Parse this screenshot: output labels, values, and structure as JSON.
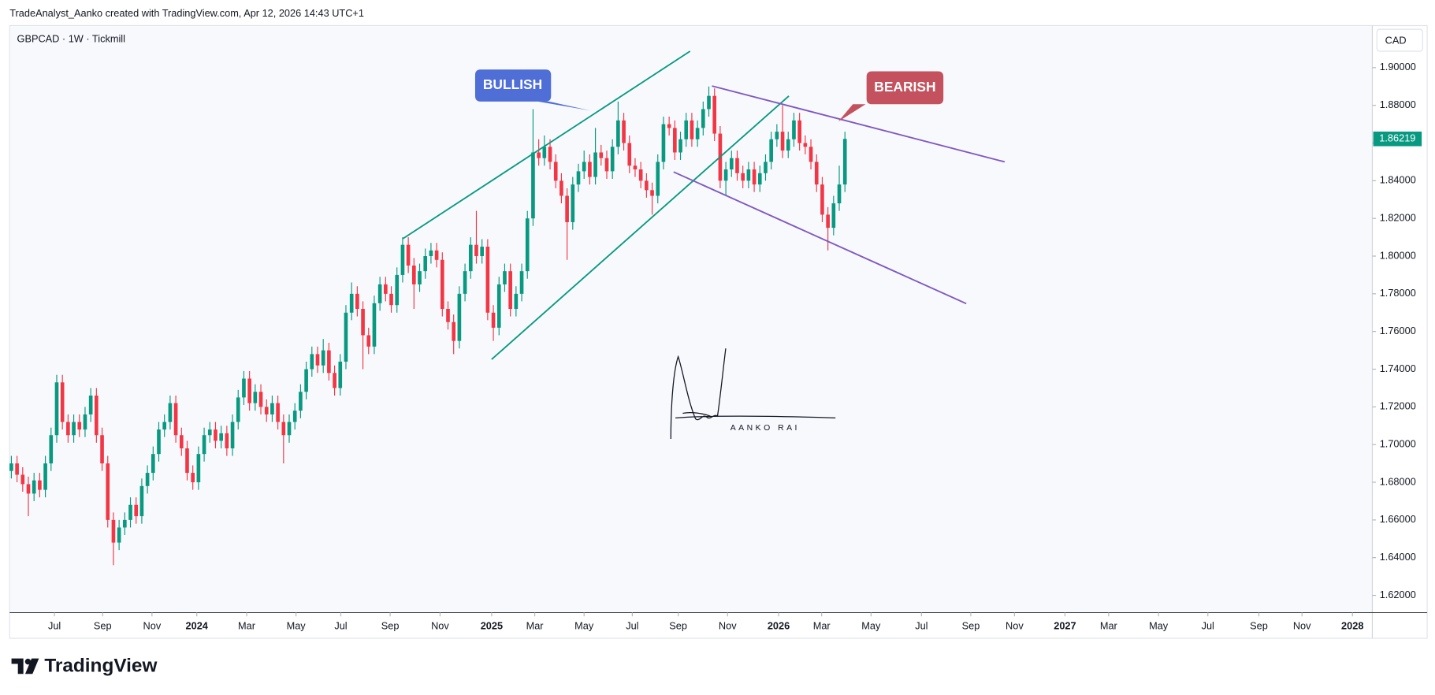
{
  "header": {
    "credit": "TradeAnalyst_Aanko created with TradingView.com, Apr 12, 2026 14:43 UTC+1"
  },
  "footer": {
    "logo": "TradingView"
  },
  "chart_data": {
    "type": "candlestick",
    "title": "GBPCAD · 1W · Tickmill",
    "currency": "CAD",
    "up_color": "#089981",
    "down_color": "#f23645",
    "annotations": [
      "BULLISH",
      "BEARISH"
    ],
    "signature": "AANKO RAI",
    "xlim": [
      -0.3,
      240
    ],
    "xticks": [
      {
        "value": 7.6,
        "label": "Jul"
      },
      {
        "value": 16.1,
        "label": "Sep"
      },
      {
        "value": 24.8,
        "label": "Nov"
      },
      {
        "value": 32.7,
        "label": "2024"
      },
      {
        "value": 41.5,
        "label": "Mar"
      },
      {
        "value": 50.2,
        "label": "May"
      },
      {
        "value": 58.1,
        "label": "Jul"
      },
      {
        "value": 66.8,
        "label": "Sep"
      },
      {
        "value": 75.6,
        "label": "Nov"
      },
      {
        "value": 84.7,
        "label": "2025"
      },
      {
        "value": 92.3,
        "label": "Mar"
      },
      {
        "value": 101,
        "label": "May"
      },
      {
        "value": 109.5,
        "label": "Jul"
      },
      {
        "value": 117.6,
        "label": "Sep"
      },
      {
        "value": 126.3,
        "label": "Nov"
      },
      {
        "value": 135.3,
        "label": "2026"
      },
      {
        "value": 142.9,
        "label": "Mar"
      },
      {
        "value": 151.6,
        "label": "May"
      },
      {
        "value": 160.5,
        "label": "Jul"
      },
      {
        "value": 169.2,
        "label": "Sep"
      },
      {
        "value": 176.9,
        "label": "Nov"
      },
      {
        "value": 185.8,
        "label": "2027"
      },
      {
        "value": 193.5,
        "label": "Mar"
      },
      {
        "value": 202.3,
        "label": "May"
      },
      {
        "value": 211,
        "label": "Jul"
      },
      {
        "value": 220,
        "label": "Sep"
      },
      {
        "value": 227.6,
        "label": "Nov"
      },
      {
        "value": 236.5,
        "label": "2028"
      }
    ],
    "ylim": [
      1.6108,
      1.9223
    ],
    "yticks": [
      {
        "value": 1.62,
        "label": "1.62000"
      },
      {
        "value": 1.64,
        "label": "1.64000"
      },
      {
        "value": 1.66,
        "label": "1.66000"
      },
      {
        "value": 1.68,
        "label": "1.68000"
      },
      {
        "value": 1.7,
        "label": "1.70000"
      },
      {
        "value": 1.72,
        "label": "1.72000"
      },
      {
        "value": 1.74,
        "label": "1.74000"
      },
      {
        "value": 1.76,
        "label": "1.76000"
      },
      {
        "value": 1.78,
        "label": "1.78000"
      },
      {
        "value": 1.8,
        "label": "1.80000"
      },
      {
        "value": 1.82,
        "label": "1.82000"
      },
      {
        "value": 1.84,
        "label": "1.84000"
      },
      {
        "value": 1.86,
        "label": "1.86000"
      },
      {
        "value": 1.88,
        "label": "1.88000"
      },
      {
        "value": 1.9,
        "label": "1.90000"
      }
    ],
    "candles": [
      [
        1.686,
        1.694,
        1.682,
        1.69
      ],
      [
        1.69,
        1.694,
        1.68,
        1.684
      ],
      [
        1.684,
        1.688,
        1.675,
        1.679
      ],
      [
        1.679,
        1.683,
        1.662,
        1.674
      ],
      [
        1.674,
        1.685,
        1.67,
        1.681
      ],
      [
        1.681,
        1.685,
        1.672,
        1.676
      ],
      [
        1.676,
        1.694,
        1.672,
        1.69
      ],
      [
        1.69,
        1.709,
        1.686,
        1.705
      ],
      [
        1.705,
        1.737,
        1.701,
        1.733
      ],
      [
        1.733,
        1.737,
        1.708,
        1.712
      ],
      [
        1.712,
        1.716,
        1.701,
        1.705
      ],
      [
        1.705,
        1.716,
        1.701,
        1.712
      ],
      [
        1.712,
        1.716,
        1.704,
        1.708
      ],
      [
        1.708,
        1.72,
        1.704,
        1.716
      ],
      [
        1.716,
        1.73,
        1.712,
        1.726
      ],
      [
        1.726,
        1.73,
        1.701,
        1.705
      ],
      [
        1.705,
        1.709,
        1.686,
        1.69
      ],
      [
        1.69,
        1.694,
        1.656,
        1.66
      ],
      [
        1.66,
        1.664,
        1.636,
        1.648
      ],
      [
        1.648,
        1.66,
        1.644,
        1.656
      ],
      [
        1.656,
        1.664,
        1.652,
        1.66
      ],
      [
        1.66,
        1.672,
        1.656,
        1.668
      ],
      [
        1.668,
        1.672,
        1.658,
        1.662
      ],
      [
        1.662,
        1.682,
        1.658,
        1.678
      ],
      [
        1.678,
        1.689,
        1.674,
        1.685
      ],
      [
        1.685,
        1.699,
        1.681,
        1.695
      ],
      [
        1.695,
        1.712,
        1.691,
        1.708
      ],
      [
        1.708,
        1.716,
        1.704,
        1.712
      ],
      [
        1.712,
        1.726,
        1.708,
        1.722
      ],
      [
        1.722,
        1.726,
        1.701,
        1.705
      ],
      [
        1.705,
        1.709,
        1.694,
        1.698
      ],
      [
        1.698,
        1.702,
        1.681,
        1.685
      ],
      [
        1.685,
        1.689,
        1.676,
        1.68
      ],
      [
        1.68,
        1.699,
        1.676,
        1.695
      ],
      [
        1.695,
        1.709,
        1.691,
        1.705
      ],
      [
        1.705,
        1.712,
        1.701,
        1.708
      ],
      [
        1.708,
        1.712,
        1.698,
        1.702
      ],
      [
        1.702,
        1.71,
        1.698,
        1.706
      ],
      [
        1.706,
        1.71,
        1.694,
        1.698
      ],
      [
        1.698,
        1.716,
        1.694,
        1.712
      ],
      [
        1.712,
        1.729,
        1.708,
        1.725
      ],
      [
        1.725,
        1.739,
        1.721,
        1.735
      ],
      [
        1.735,
        1.739,
        1.718,
        1.722
      ],
      [
        1.722,
        1.732,
        1.718,
        1.728
      ],
      [
        1.728,
        1.732,
        1.716,
        1.72
      ],
      [
        1.72,
        1.724,
        1.712,
        1.716
      ],
      [
        1.716,
        1.726,
        1.712,
        1.722
      ],
      [
        1.722,
        1.726,
        1.708,
        1.712
      ],
      [
        1.712,
        1.716,
        1.69,
        1.705
      ],
      [
        1.705,
        1.716,
        1.701,
        1.712
      ],
      [
        1.712,
        1.722,
        1.708,
        1.718
      ],
      [
        1.718,
        1.732,
        1.714,
        1.728
      ],
      [
        1.728,
        1.744,
        1.724,
        1.74
      ],
      [
        1.74,
        1.752,
        1.736,
        1.748
      ],
      [
        1.748,
        1.752,
        1.738,
        1.742
      ],
      [
        1.742,
        1.756,
        1.738,
        1.75
      ],
      [
        1.75,
        1.754,
        1.734,
        1.738
      ],
      [
        1.738,
        1.742,
        1.726,
        1.73
      ],
      [
        1.73,
        1.748,
        1.726,
        1.744
      ],
      [
        1.744,
        1.774,
        1.74,
        1.77
      ],
      [
        1.77,
        1.786,
        1.766,
        1.78
      ],
      [
        1.78,
        1.784,
        1.768,
        1.772
      ],
      [
        1.772,
        1.776,
        1.74,
        1.758
      ],
      [
        1.758,
        1.762,
        1.748,
        1.752
      ],
      [
        1.752,
        1.779,
        1.748,
        1.775
      ],
      [
        1.775,
        1.789,
        1.771,
        1.785
      ],
      [
        1.785,
        1.789,
        1.776,
        1.78
      ],
      [
        1.78,
        1.784,
        1.77,
        1.774
      ],
      [
        1.774,
        1.794,
        1.77,
        1.79
      ],
      [
        1.79,
        1.81,
        1.786,
        1.806
      ],
      [
        1.806,
        1.81,
        1.791,
        1.795
      ],
      [
        1.795,
        1.799,
        1.772,
        1.785
      ],
      [
        1.785,
        1.796,
        1.781,
        1.792
      ],
      [
        1.792,
        1.804,
        1.788,
        1.8
      ],
      [
        1.8,
        1.807,
        1.796,
        1.803
      ],
      [
        1.803,
        1.807,
        1.794,
        1.798
      ],
      [
        1.798,
        1.802,
        1.768,
        1.772
      ],
      [
        1.772,
        1.776,
        1.761,
        1.765
      ],
      [
        1.765,
        1.769,
        1.748,
        1.755
      ],
      [
        1.755,
        1.784,
        1.751,
        1.78
      ],
      [
        1.78,
        1.796,
        1.776,
        1.792
      ],
      [
        1.792,
        1.81,
        1.788,
        1.806
      ],
      [
        1.806,
        1.824,
        1.796,
        1.8
      ],
      [
        1.8,
        1.809,
        1.796,
        1.805
      ],
      [
        1.805,
        1.809,
        1.766,
        1.77
      ],
      [
        1.77,
        1.774,
        1.755,
        1.762
      ],
      [
        1.762,
        1.789,
        1.758,
        1.785
      ],
      [
        1.785,
        1.796,
        1.781,
        1.792
      ],
      [
        1.792,
        1.796,
        1.768,
        1.772
      ],
      [
        1.772,
        1.784,
        1.768,
        1.78
      ],
      [
        1.78,
        1.796,
        1.776,
        1.792
      ],
      [
        1.792,
        1.824,
        1.788,
        1.82
      ],
      [
        1.82,
        1.878,
        1.816,
        1.855
      ],
      [
        1.855,
        1.862,
        1.848,
        1.852
      ],
      [
        1.852,
        1.864,
        1.848,
        1.858
      ],
      [
        1.858,
        1.862,
        1.846,
        1.85
      ],
      [
        1.85,
        1.854,
        1.836,
        1.84
      ],
      [
        1.84,
        1.844,
        1.828,
        1.832
      ],
      [
        1.832,
        1.836,
        1.798,
        1.818
      ],
      [
        1.818,
        1.842,
        1.814,
        1.838
      ],
      [
        1.838,
        1.849,
        1.834,
        1.845
      ],
      [
        1.845,
        1.856,
        1.841,
        1.85
      ],
      [
        1.85,
        1.854,
        1.838,
        1.842
      ],
      [
        1.842,
        1.868,
        1.838,
        1.855
      ],
      [
        1.855,
        1.859,
        1.848,
        1.852
      ],
      [
        1.852,
        1.856,
        1.841,
        1.845
      ],
      [
        1.845,
        1.862,
        1.841,
        1.858
      ],
      [
        1.858,
        1.882,
        1.854,
        1.872
      ],
      [
        1.872,
        1.876,
        1.856,
        1.86
      ],
      [
        1.86,
        1.864,
        1.844,
        1.848
      ],
      [
        1.848,
        1.852,
        1.842,
        1.846
      ],
      [
        1.846,
        1.85,
        1.836,
        1.84
      ],
      [
        1.84,
        1.844,
        1.831,
        1.835
      ],
      [
        1.835,
        1.839,
        1.822,
        1.832
      ],
      [
        1.832,
        1.854,
        1.828,
        1.85
      ],
      [
        1.85,
        1.874,
        1.846,
        1.87
      ],
      [
        1.87,
        1.874,
        1.864,
        1.868
      ],
      [
        1.868,
        1.872,
        1.851,
        1.855
      ],
      [
        1.855,
        1.866,
        1.851,
        1.862
      ],
      [
        1.862,
        1.876,
        1.858,
        1.872
      ],
      [
        1.872,
        1.876,
        1.858,
        1.862
      ],
      [
        1.862,
        1.872,
        1.858,
        1.868
      ],
      [
        1.868,
        1.882,
        1.864,
        1.878
      ],
      [
        1.878,
        1.89,
        1.874,
        1.885
      ],
      [
        1.885,
        1.889,
        1.861,
        1.865
      ],
      [
        1.865,
        1.869,
        1.836,
        1.84
      ],
      [
        1.84,
        1.85,
        1.832,
        1.846
      ],
      [
        1.846,
        1.856,
        1.842,
        1.852
      ],
      [
        1.852,
        1.856,
        1.84,
        1.844
      ],
      [
        1.844,
        1.848,
        1.836,
        1.84
      ],
      [
        1.84,
        1.85,
        1.836,
        1.846
      ],
      [
        1.846,
        1.85,
        1.834,
        1.838
      ],
      [
        1.838,
        1.848,
        1.834,
        1.844
      ],
      [
        1.844,
        1.854,
        1.84,
        1.85
      ],
      [
        1.85,
        1.866,
        1.846,
        1.862
      ],
      [
        1.862,
        1.87,
        1.858,
        1.866
      ],
      [
        1.866,
        1.88,
        1.852,
        1.856
      ],
      [
        1.856,
        1.866,
        1.852,
        1.862
      ],
      [
        1.862,
        1.876,
        1.858,
        1.872
      ],
      [
        1.872,
        1.876,
        1.856,
        1.86
      ],
      [
        1.86,
        1.864,
        1.854,
        1.858
      ],
      [
        1.858,
        1.862,
        1.846,
        1.85
      ],
      [
        1.85,
        1.854,
        1.834,
        1.838
      ],
      [
        1.838,
        1.842,
        1.818,
        1.822
      ],
      [
        1.822,
        1.826,
        1.803,
        1.815
      ],
      [
        1.815,
        1.832,
        1.811,
        1.828
      ],
      [
        1.828,
        1.848,
        1.824,
        1.838
      ],
      [
        1.838,
        1.866,
        1.834,
        1.86219
      ]
    ]
  }
}
